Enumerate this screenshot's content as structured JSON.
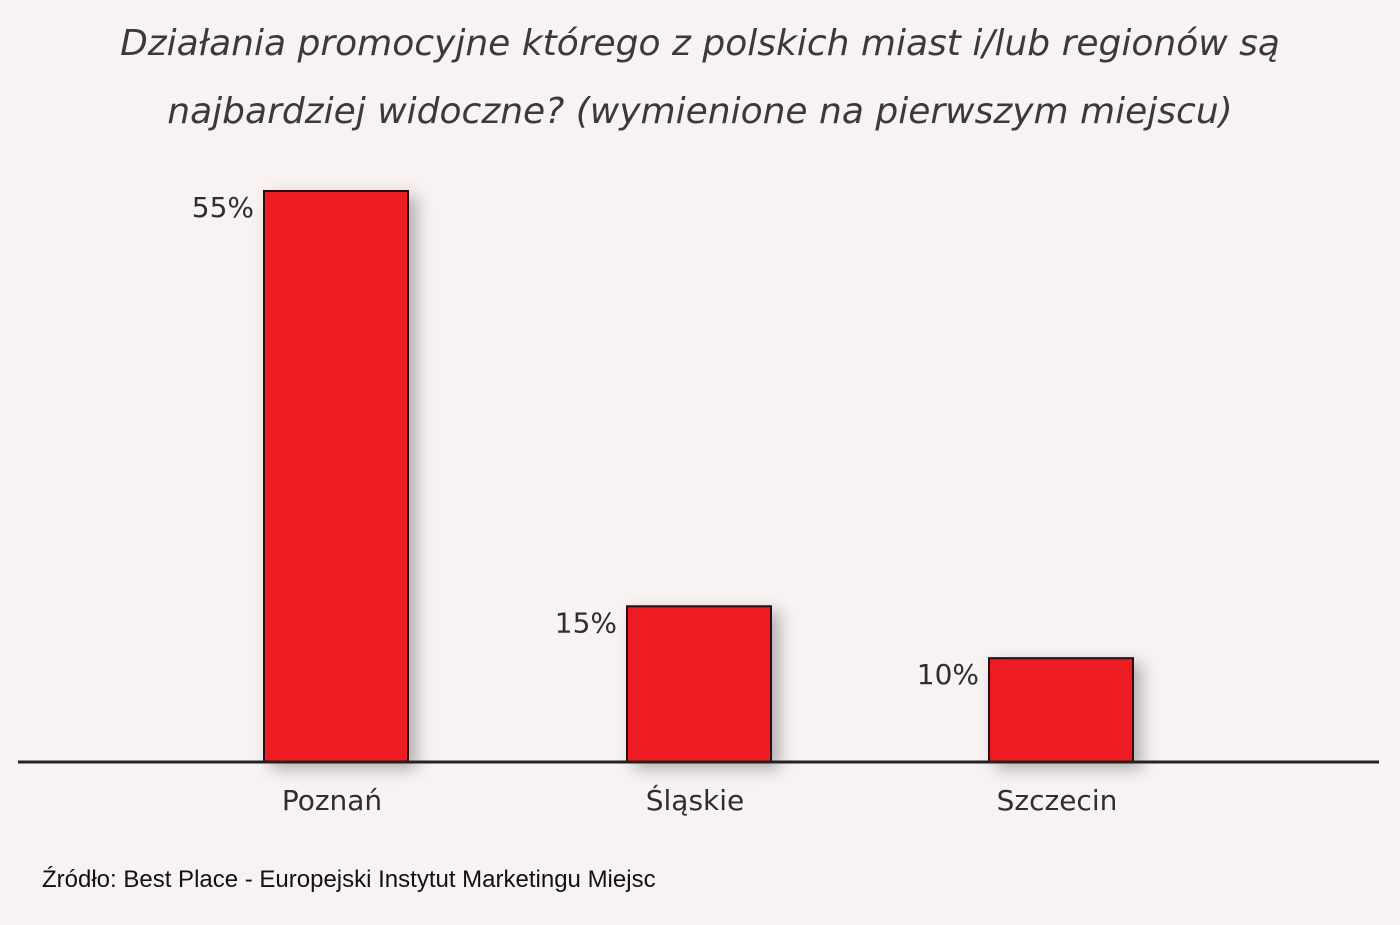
{
  "chart_data": {
    "type": "bar",
    "title": [
      "Działania promocyjne którego z polskich miast i/lub regionów są",
      "najbardziej widoczne? (wymienione na pierwszym miejscu)"
    ],
    "categories": [
      "Poznań",
      "Śląskie",
      "Szczecin"
    ],
    "values": [
      55,
      15,
      10
    ],
    "value_labels": [
      "55%",
      "15%",
      "10%"
    ],
    "xlabel": "",
    "ylabel": "",
    "ylim": [
      0,
      55
    ],
    "grid": false,
    "legend": "none",
    "bar_color": "#ed1c24",
    "bar_stroke": "#2a0a0a",
    "axis_color": "#222222"
  },
  "source": "Źródło: Best Place - Europejski Instytut Marketingu Miejsc"
}
